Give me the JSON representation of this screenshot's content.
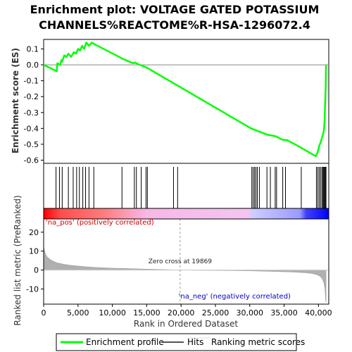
{
  "chart_data": {
    "type": "line",
    "title": "Enrichment plot: VOLTAGE GATED POTASSIUM CHANNELS%REACTOME%R-HSA-1296072.4",
    "title_lines": [
      "Enrichment plot: VOLTAGE GATED POTASSIUM",
      "CHANNELS%REACTOME%R-HSA-1296072.4"
    ],
    "xlabel": "Rank in Ordered Dataset",
    "xlim": [
      0,
      41500
    ],
    "xticks": [
      0,
      5000,
      10000,
      15000,
      20000,
      25000,
      30000,
      35000,
      40000
    ],
    "xtick_labels": [
      "0",
      "5,000",
      "10,000",
      "15,000",
      "20,000",
      "25,000",
      "30,000",
      "35,000",
      "40,000"
    ],
    "es_panel": {
      "ylabel": "Enrichment score (ES)",
      "ylim": [
        -0.62,
        0.16
      ],
      "yticks": [
        0.1,
        0.0,
        -0.1,
        -0.2,
        -0.3,
        -0.4,
        -0.5,
        -0.6
      ],
      "ytick_labels": [
        "0.1",
        "0.0",
        "-0.1",
        "-0.2",
        "-0.3",
        "-0.4",
        "-0.5",
        "-0.6"
      ],
      "series": [
        {
          "name": "Enrichment profile",
          "color": "#00ff00",
          "x": [
            0,
            1900,
            2000,
            2400,
            2600,
            2700,
            3000,
            3300,
            3600,
            4000,
            4400,
            4700,
            5000,
            5300,
            5600,
            5900,
            6200,
            6600,
            7000,
            7400,
            11000,
            11400,
            13000,
            13300,
            13700,
            14900,
            15100,
            30200,
            32600,
            33800,
            34700,
            35500,
            37000,
            37800,
            39600,
            39900,
            40000,
            40100,
            40300,
            40500,
            40700,
            40800,
            40900,
            40950,
            41000,
            41050,
            41100
          ],
          "y": [
            0.0,
            -0.04,
            0.01,
            0.0,
            0.03,
            0.02,
            0.06,
            0.05,
            0.07,
            0.05,
            0.08,
            0.07,
            0.1,
            0.09,
            0.12,
            0.1,
            0.14,
            0.12,
            0.14,
            0.13,
            0.05,
            0.04,
            0.01,
            0.015,
            0.005,
            -0.015,
            -0.02,
            -0.4,
            -0.44,
            -0.45,
            -0.47,
            -0.475,
            -0.51,
            -0.53,
            -0.575,
            -0.55,
            -0.53,
            -0.51,
            -0.49,
            -0.46,
            -0.43,
            -0.41,
            -0.35,
            -0.27,
            -0.21,
            -0.14,
            0.0
          ]
        }
      ]
    },
    "hits": {
      "name": "Hits",
      "x": [
        1800,
        2300,
        2700,
        3600,
        4300,
        4800,
        5200,
        5700,
        6100,
        6600,
        7300,
        11400,
        13200,
        13500,
        14200,
        14900,
        15100,
        18900,
        19500,
        30300,
        30500,
        30700,
        30900,
        31100,
        31400,
        32500,
        33000,
        33700,
        33900,
        34800,
        35200,
        37500,
        39700,
        39900,
        40100,
        40300,
        40500,
        40650,
        40750,
        40850,
        40950,
        41000,
        41100
      ]
    },
    "rank_panel": {
      "ylabel": "Ranked list metric (PreRanked)",
      "ylim": [
        -18,
        27
      ],
      "yticks": [
        20,
        10,
        0,
        -10
      ],
      "ytick_labels": [
        "20",
        "10",
        "0",
        "-10"
      ],
      "series": [
        {
          "name": "Ranking metric scores",
          "x": [
            0,
            200,
            500,
            1000,
            1500,
            2000,
            3000,
            4000,
            6000,
            8000,
            10000,
            12000,
            15000,
            17000,
            19869,
            22000,
            25000,
            28000,
            30000,
            32000,
            34000,
            36000,
            38000,
            39000,
            39800,
            40300,
            40600,
            40800,
            40950,
            41000,
            41050,
            41100
          ],
          "y": [
            12.5,
            9.0,
            7.0,
            5.5,
            4.5,
            3.8,
            3.0,
            2.5,
            1.8,
            1.3,
            1.0,
            0.8,
            0.5,
            0.3,
            0.0,
            -0.1,
            -0.2,
            -0.3,
            -0.4,
            -0.6,
            -0.8,
            -1.0,
            -1.4,
            -1.8,
            -2.5,
            -3.5,
            -5.0,
            -7.0,
            -10.0,
            -13.0,
            -16.0,
            -17.0
          ]
        }
      ],
      "zero_cross_label": "Zero cross at 19869",
      "zero_cross_x": 19869,
      "pos_label": "'na_pos' (positively correlated)",
      "neg_label": "'na_neg' (negatively correlated)"
    },
    "gradient_stops": [
      {
        "x": 0,
        "color": "#ff0000"
      },
      {
        "x": 2500,
        "color": "#ff4d4d"
      },
      {
        "x": 8500,
        "color": "#ff7a7a"
      },
      {
        "x": 15000,
        "color": "#f7b8e6"
      },
      {
        "x": 29800,
        "color": "#f3c5f0"
      },
      {
        "x": 30500,
        "color": "#ccccff"
      },
      {
        "x": 37300,
        "color": "#9a9aff"
      },
      {
        "x": 38200,
        "color": "#4040ff"
      },
      {
        "x": 41500,
        "color": "#0000ff"
      }
    ],
    "legend": {
      "placement": "bottom",
      "items": [
        {
          "label": "Enrichment profile",
          "color": "#00ff00",
          "style": "line"
        },
        {
          "label": "Hits",
          "color": "#000000",
          "style": "line"
        },
        {
          "label": "Ranking metric scores",
          "color": "#cccccc",
          "style": "line"
        }
      ]
    }
  }
}
